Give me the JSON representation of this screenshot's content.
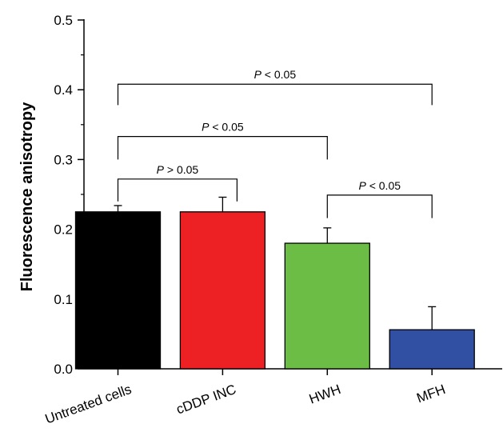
{
  "chart_data": {
    "type": "bar",
    "title": "",
    "xlabel": "",
    "ylabel": "Fluorescence anisotropy",
    "ylim": [
      0,
      0.5
    ],
    "yticks": [
      "0.0",
      "0.1",
      "0.2",
      "0.3",
      "0.4",
      "0.5"
    ],
    "grid": false,
    "categories": [
      "Untreated cells",
      "cDDP INC",
      "HWH",
      "MFH"
    ],
    "values": [
      0.225,
      0.225,
      0.18,
      0.056
    ],
    "errors": [
      0.009,
      0.021,
      0.022,
      0.033
    ],
    "colors": [
      "#000000",
      "#ed2024",
      "#6cbd45",
      "#3250a3"
    ],
    "annotations": [
      {
        "from": "Untreated cells",
        "to": "cDDP INC",
        "label": "P > 0.05"
      },
      {
        "from": "Untreated cells",
        "to": "HWH",
        "label": "P < 0.05"
      },
      {
        "from": "Untreated cells",
        "to": "MFH",
        "label": "P < 0.05"
      },
      {
        "from": "HWH",
        "to": "MFH",
        "label": "P < 0.05"
      }
    ]
  }
}
